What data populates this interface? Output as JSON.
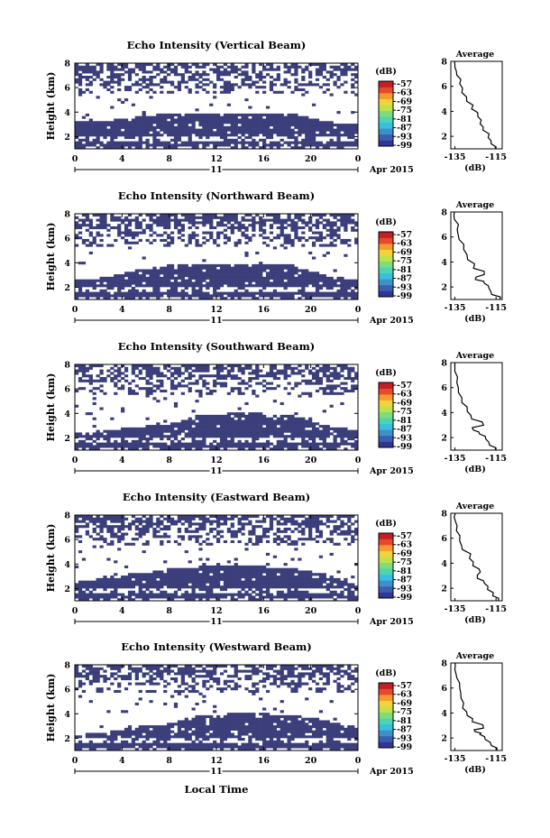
{
  "colors": {
    "fill": "#3b3e7a",
    "colorbar": [
      "#313695",
      "#3b5fb0",
      "#3f8fc8",
      "#35c0e0",
      "#4fd3b0",
      "#7fdc7a",
      "#bfe24a",
      "#f2d43a",
      "#f79a2e",
      "#e8482b",
      "#c41e26"
    ]
  },
  "xaxis": {
    "ticks": [
      "0",
      "4",
      "8",
      "12",
      "16",
      "20",
      "0"
    ],
    "day": "11",
    "month_year": "Apr 2015",
    "label": "Local Time"
  },
  "yaxis_label": "Height (km)",
  "colorbar": {
    "unit": "(dB)",
    "labels": [
      "-57",
      "-63",
      "-69",
      "-75",
      "-81",
      "-87",
      "-93",
      "-99"
    ]
  },
  "average_profile": {
    "title": "Average",
    "unit": "(dB)",
    "x_ticks": [
      "-135",
      "-115"
    ]
  },
  "chart_data": [
    {
      "type": "heatmap",
      "title": "Echo Intensity (Vertical Beam)",
      "ylabel": "Height (km)",
      "y_ticks": [
        "2",
        "4",
        "6",
        "8"
      ],
      "ylim": [
        1,
        8
      ],
      "xlim": [
        0,
        24
      ],
      "lower_layer": {
        "bottom_km": 1.2,
        "top_km": [
          3.3,
          3.3,
          3.6,
          3.9,
          3.9,
          3.9,
          3.9,
          3.8,
          3.2,
          3.0
        ]
      },
      "upper_scatter_km": [
        5.5,
        8.0
      ],
      "average_profile": {
        "x": [
          -115,
          -117,
          -119,
          -121,
          -123,
          -124,
          -127,
          -129,
          -132,
          -133,
          -134,
          -135,
          -135
        ],
        "y": [
          1.0,
          1.4,
          1.9,
          2.5,
          3.0,
          3.6,
          4.2,
          4.8,
          5.5,
          6.2,
          6.9,
          7.5,
          8.0
        ]
      }
    },
    {
      "type": "heatmap",
      "title": "Echo Intensity (Northward Beam)",
      "ylabel": "Height (km)",
      "y_ticks": [
        "2",
        "4",
        "6",
        "8"
      ],
      "ylim": [
        1,
        8
      ],
      "xlim": [
        0,
        24
      ],
      "lower_layer": {
        "bottom_km": 1.2,
        "top_km": [
          2.6,
          2.8,
          3.4,
          3.8,
          3.9,
          3.9,
          3.9,
          3.8,
          2.9,
          2.6
        ]
      },
      "upper_scatter_km": [
        5.3,
        8.0
      ],
      "average_profile": {
        "x": [
          -113,
          -117,
          -118,
          -121,
          -125,
          -121,
          -126,
          -129,
          -131,
          -133,
          -134,
          -135,
          -135
        ],
        "y": [
          1.0,
          1.4,
          1.9,
          2.3,
          2.6,
          3.0,
          3.5,
          4.2,
          5.0,
          5.8,
          6.6,
          7.4,
          8.0
        ]
      }
    },
    {
      "type": "heatmap",
      "title": "Echo Intensity (Southward Beam)",
      "ylabel": "Height (km)",
      "y_ticks": [
        "2",
        "4",
        "6",
        "8"
      ],
      "ylim": [
        1,
        8
      ],
      "xlim": [
        0,
        24
      ],
      "lower_layer": {
        "bottom_km": 1.2,
        "top_km": [
          2.4,
          2.6,
          2.9,
          3.1,
          3.9,
          4.0,
          4.0,
          3.8,
          3.0,
          2.6
        ]
      },
      "upper_scatter_km": [
        5.5,
        8.0
      ],
      "average_profile": {
        "x": [
          -115,
          -118,
          -120,
          -123,
          -126,
          -121,
          -127,
          -129,
          -132,
          -133,
          -134,
          -135,
          -135
        ],
        "y": [
          1.0,
          1.4,
          1.9,
          2.3,
          2.6,
          3.0,
          3.5,
          4.1,
          4.8,
          5.6,
          6.4,
          7.3,
          8.0
        ]
      }
    },
    {
      "type": "heatmap",
      "title": "Echo Intensity (Eastward Beam)",
      "ylabel": "Height (km)",
      "y_ticks": [
        "2",
        "4",
        "6",
        "8"
      ],
      "ylim": [
        1,
        8
      ],
      "xlim": [
        0,
        24
      ],
      "lower_layer": {
        "bottom_km": 1.2,
        "top_km": [
          2.5,
          2.9,
          3.3,
          3.6,
          3.8,
          3.8,
          3.8,
          3.6,
          3.2,
          2.2
        ]
      },
      "upper_scatter_km": [
        5.5,
        8.0
      ],
      "average_profile": {
        "x": [
          -114,
          -117,
          -119,
          -121,
          -124,
          -123,
          -126,
          -128,
          -131,
          -133,
          -134,
          -135,
          -135
        ],
        "y": [
          1.0,
          1.4,
          1.9,
          2.4,
          2.8,
          3.3,
          3.8,
          4.4,
          5.1,
          5.8,
          6.6,
          7.4,
          8.0
        ]
      }
    },
    {
      "type": "heatmap",
      "title": "Echo Intensity (Westward Beam)",
      "ylabel": "Height (km)",
      "y_ticks": [
        "2",
        "4",
        "6",
        "8"
      ],
      "ylim": [
        1,
        8
      ],
      "xlim": [
        0,
        24
      ],
      "lower_layer": {
        "bottom_km": 1.2,
        "top_km": [
          2.3,
          2.5,
          2.9,
          3.2,
          3.9,
          4.0,
          4.0,
          3.9,
          3.4,
          2.9
        ]
      },
      "upper_scatter_km": [
        5.8,
        8.0
      ],
      "average_profile": {
        "x": [
          -115,
          -117,
          -120,
          -123,
          -125,
          -121,
          -127,
          -129,
          -131,
          -132,
          -133,
          -134,
          -135,
          -135
        ],
        "y": [
          1.0,
          1.4,
          1.9,
          2.3,
          2.5,
          2.8,
          3.3,
          3.8,
          4.4,
          5.2,
          6.0,
          6.8,
          7.5,
          8.0
        ]
      }
    }
  ]
}
